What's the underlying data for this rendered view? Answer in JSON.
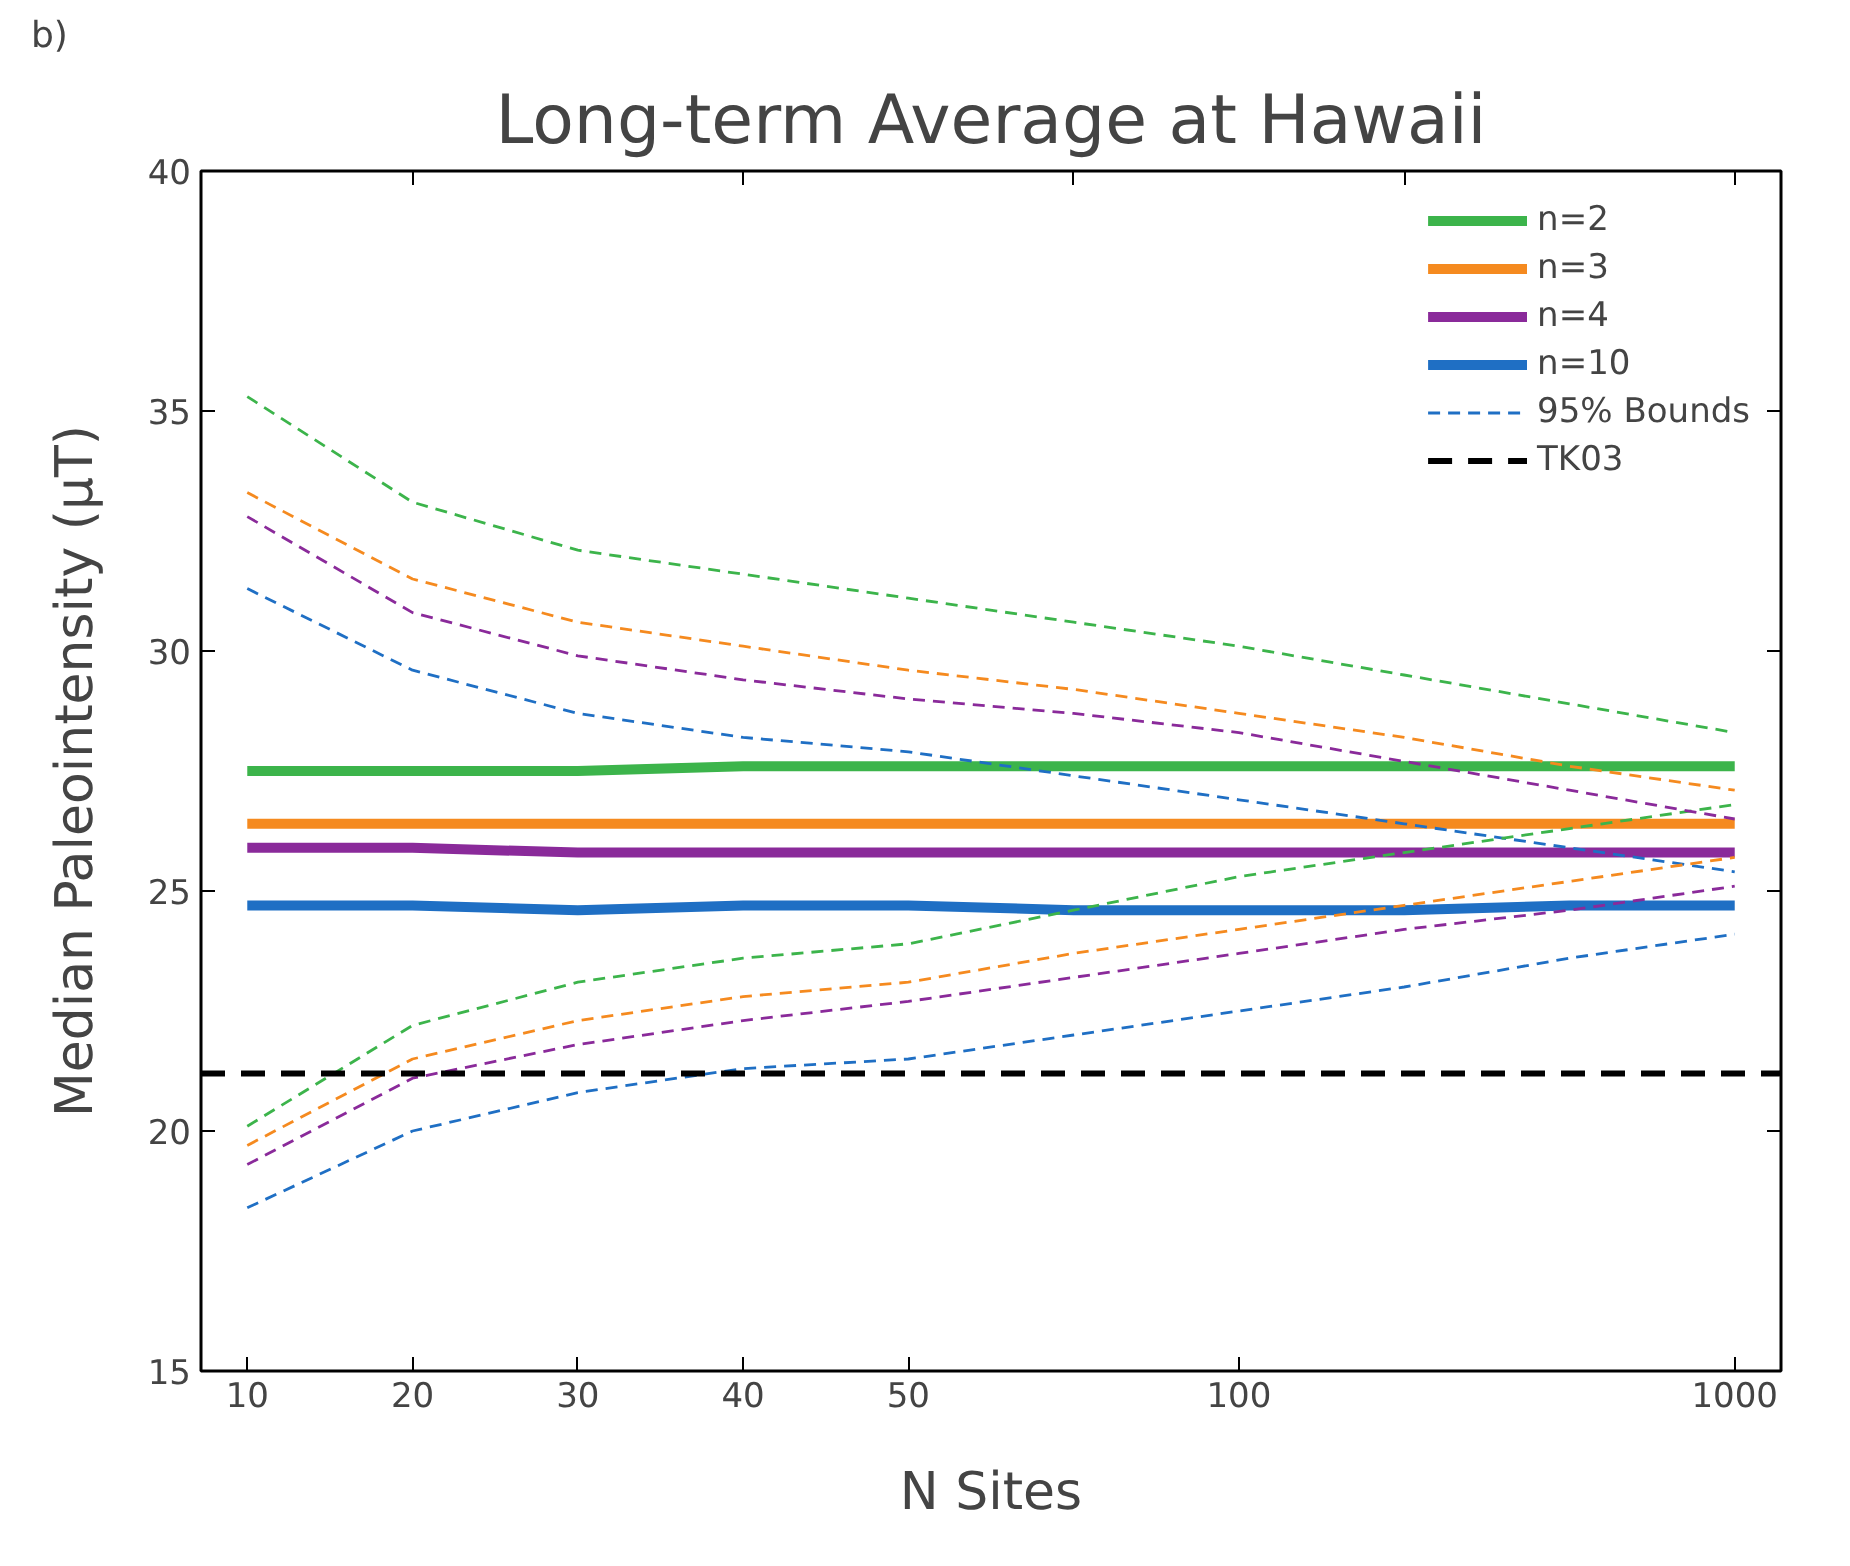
{
  "chart_data": {
    "type": "line",
    "title": "Long-term Average at Hawaii",
    "xlabel": "N Sites",
    "ylabel": "Median Paleointensity (μT)",
    "annotations": [
      "b)"
    ],
    "categories": [
      "10",
      "20",
      "30",
      "40",
      "50",
      null,
      "100",
      null,
      null,
      "1000"
    ],
    "ylim": [
      15,
      40
    ],
    "yticks": [
      15,
      20,
      25,
      30,
      35,
      40
    ],
    "grid": false,
    "legend": "top right",
    "series": [
      {
        "name": "n=2",
        "color": "#3cb44b",
        "line_style": "solid",
        "values": [
          27.5,
          27.5,
          27.5,
          27.6,
          27.6,
          27.6,
          27.6,
          27.6,
          27.6,
          27.6
        ]
      },
      {
        "name": "n=3",
        "color": "#f58a1f",
        "line_style": "solid",
        "values": [
          26.4,
          26.4,
          26.4,
          26.4,
          26.4,
          26.4,
          26.4,
          26.4,
          26.4,
          26.4
        ]
      },
      {
        "name": "n=4",
        "color": "#8a2a9a",
        "line_style": "solid",
        "values": [
          25.9,
          25.9,
          25.8,
          25.8,
          25.8,
          25.8,
          25.8,
          25.8,
          25.8,
          25.8
        ]
      },
      {
        "name": "n=10",
        "color": "#1f6fc4",
        "line_style": "solid",
        "values": [
          24.7,
          24.7,
          24.6,
          24.7,
          24.7,
          24.6,
          24.6,
          24.6,
          24.7,
          24.7
        ]
      },
      {
        "name": "95% Bounds",
        "color": "#1f6fc4",
        "line_style": "dashed",
        "values": [
          31.3,
          29.6,
          28.7,
          28.2,
          27.9,
          27.4,
          26.9,
          26.4,
          25.9,
          25.4
        ]
      },
      {
        "color": "#1f6fc4",
        "line_style": "dashed",
        "values": [
          18.4,
          20.0,
          20.8,
          21.3,
          21.5,
          22.0,
          22.5,
          23.0,
          23.6,
          24.1
        ]
      },
      {
        "color": "#3cb44b",
        "line_style": "dashed",
        "values": [
          35.3,
          33.1,
          32.1,
          31.6,
          31.1,
          30.6,
          30.1,
          29.5,
          28.9,
          28.3
        ]
      },
      {
        "color": "#3cb44b",
        "line_style": "dashed",
        "values": [
          20.1,
          22.2,
          23.1,
          23.6,
          23.9,
          24.6,
          25.3,
          25.8,
          26.3,
          26.8
        ]
      },
      {
        "color": "#f58a1f",
        "line_style": "dashed",
        "values": [
          33.3,
          31.5,
          30.6,
          30.1,
          29.6,
          29.2,
          28.7,
          28.2,
          27.6,
          27.1
        ]
      },
      {
        "color": "#f58a1f",
        "line_style": "dashed",
        "values": [
          19.7,
          21.5,
          22.3,
          22.8,
          23.1,
          23.7,
          24.2,
          24.7,
          25.2,
          25.7
        ]
      },
      {
        "color": "#8a2a9a",
        "line_style": "dashed",
        "values": [
          32.8,
          30.8,
          29.9,
          29.4,
          29.0,
          28.7,
          28.3,
          27.7,
          27.1,
          26.5
        ]
      },
      {
        "color": "#8a2a9a",
        "line_style": "dashed",
        "values": [
          19.3,
          21.1,
          21.8,
          22.3,
          22.7,
          23.2,
          23.7,
          24.2,
          24.6,
          25.1
        ]
      }
    ],
    "ref_lines": [
      {
        "axis": "y",
        "value": 21.2,
        "label": "TK03",
        "color": "#000000",
        "line_style": "dashed"
      }
    ]
  }
}
